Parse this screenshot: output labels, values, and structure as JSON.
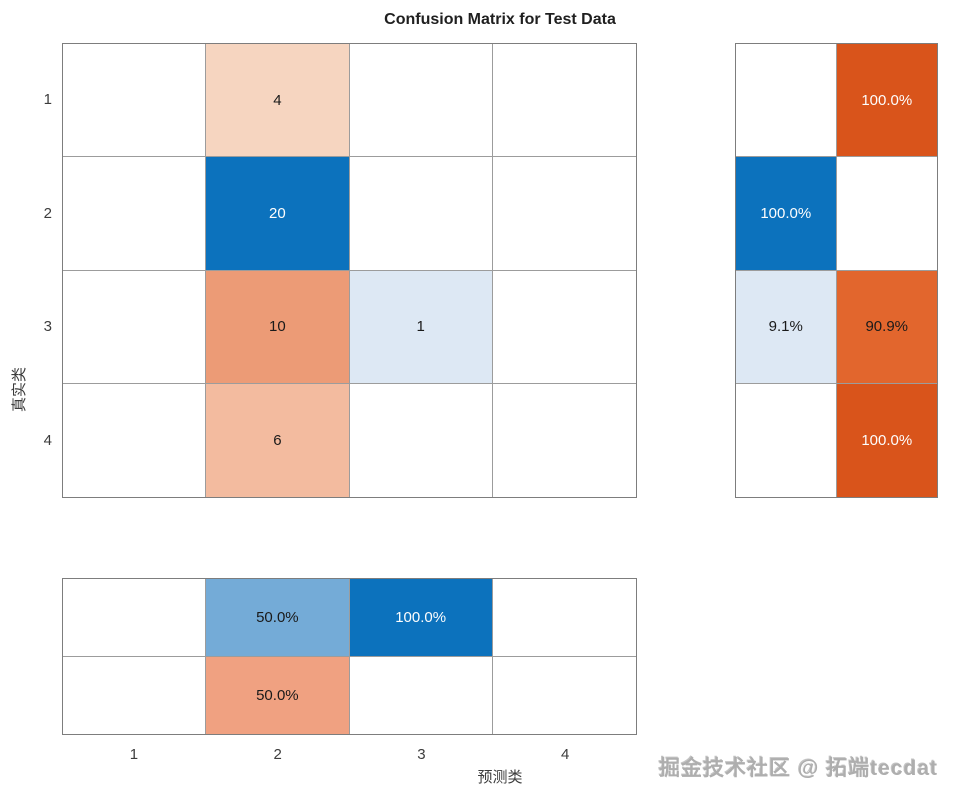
{
  "figure": {
    "title": "Confusion Matrix for Test Data",
    "xlabel": "预测类",
    "ylabel": "真实类",
    "watermark": "掘金技术社区 @ 拓端tecdat"
  },
  "colors": {
    "blue_strong": "#0c72bd",
    "blue_medium": "#74abd7",
    "blue_light": "#dde8f4",
    "orange_strong": "#d9541b",
    "orange_medium": "#e2662d",
    "orange_mid_light": "#ec9b76",
    "orange_salmon": "#f0a181",
    "orange_light": "#f3bb9f",
    "orange_pale": "#f6d5c0",
    "grid_line": "#9c9c9c",
    "text_dark": "#1a1a1a",
    "text_light": "#fdfdfd"
  },
  "chart_data": {
    "type": "heatmap",
    "variant": "confusion-matrix",
    "title": "Confusion Matrix for Test Data",
    "xlabel": "预测类",
    "ylabel": "真实类",
    "x_ticks": [
      "1",
      "2",
      "3",
      "4"
    ],
    "y_ticks": [
      "1",
      "2",
      "3",
      "4"
    ],
    "counts": [
      [
        null,
        4,
        null,
        null
      ],
      [
        null,
        20,
        null,
        null
      ],
      [
        null,
        10,
        1,
        null
      ],
      [
        null,
        6,
        null,
        null
      ]
    ],
    "matrix_cells": [
      {
        "row": 0,
        "col": 1,
        "text": "4",
        "bg": "#f6d5c0",
        "fg": "#1a1a1a"
      },
      {
        "row": 1,
        "col": 1,
        "text": "20",
        "bg": "#0c72bd",
        "fg": "#fdfdfd"
      },
      {
        "row": 2,
        "col": 1,
        "text": "10",
        "bg": "#ec9b76",
        "fg": "#1a1a1a"
      },
      {
        "row": 2,
        "col": 2,
        "text": "1",
        "bg": "#dde8f4",
        "fg": "#1a1a1a"
      },
      {
        "row": 3,
        "col": 1,
        "text": "6",
        "bg": "#f3bb9f",
        "fg": "#1a1a1a"
      }
    ],
    "row_summary_cells": [
      {
        "row": 0,
        "col": 1,
        "text": "100.0%",
        "bg": "#d9541b",
        "fg": "#fdfdfd"
      },
      {
        "row": 1,
        "col": 0,
        "text": "100.0%",
        "bg": "#0c72bd",
        "fg": "#fdfdfd"
      },
      {
        "row": 2,
        "col": 0,
        "text": "9.1%",
        "bg": "#dde8f4",
        "fg": "#1a1a1a"
      },
      {
        "row": 2,
        "col": 1,
        "text": "90.9%",
        "bg": "#e2662d",
        "fg": "#1a1a1a"
      },
      {
        "row": 3,
        "col": 1,
        "text": "100.0%",
        "bg": "#d9541b",
        "fg": "#fdfdfd"
      }
    ],
    "column_summary_cells": [
      {
        "row": 0,
        "col": 1,
        "text": "50.0%",
        "bg": "#74abd7",
        "fg": "#1a1a1a"
      },
      {
        "row": 0,
        "col": 2,
        "text": "100.0%",
        "bg": "#0c72bd",
        "fg": "#fdfdfd"
      },
      {
        "row": 1,
        "col": 1,
        "text": "50.0%",
        "bg": "#f0a181",
        "fg": "#1a1a1a"
      }
    ]
  }
}
